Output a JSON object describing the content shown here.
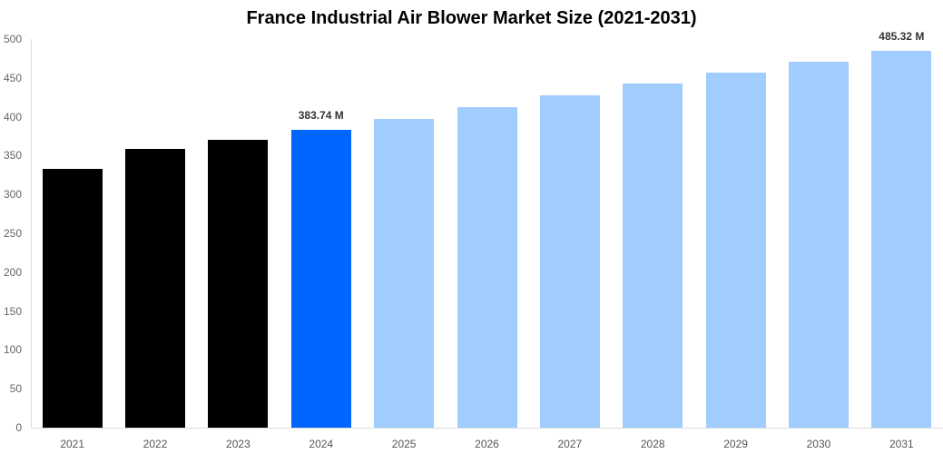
{
  "chart_data": {
    "type": "bar",
    "title": "France Industrial Air Blower Market Size (2021-2031)",
    "xlabel": "",
    "ylabel": "",
    "ylim": [
      0,
      500
    ],
    "yticks": [
      0,
      50,
      100,
      150,
      200,
      250,
      300,
      350,
      400,
      450,
      500
    ],
    "grid": false,
    "legend": null,
    "categories": [
      "2021",
      "2022",
      "2023",
      "2024",
      "2025",
      "2026",
      "2027",
      "2028",
      "2029",
      "2030",
      "2031"
    ],
    "values": [
      333,
      358.6,
      370.3,
      383.74,
      397,
      412,
      427.6,
      442.8,
      456.8,
      470.8,
      485.32
    ],
    "bar_colors": [
      "#000000",
      "#000000",
      "#000000",
      "#0066ff",
      "#a0cdfd",
      "#a0cdfd",
      "#a0cdfd",
      "#a0cdfd",
      "#a0cdfd",
      "#a0cdfd",
      "#a0cdfd"
    ],
    "annotations": [
      {
        "category": "2024",
        "label": "383.74 M"
      },
      {
        "category": "2031",
        "label": "485.32 M"
      }
    ]
  }
}
